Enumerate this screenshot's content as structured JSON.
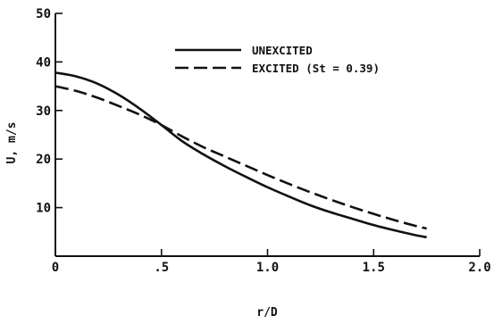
{
  "chart_data": {
    "type": "line",
    "xlabel": "r/D",
    "ylabel": "U, m/s",
    "xlim": [
      0,
      2.0
    ],
    "ylim": [
      0,
      50
    ],
    "x_ticks": [
      0,
      0.5,
      1.0,
      1.5,
      2.0
    ],
    "x_tick_labels": [
      "0",
      ".5",
      "1.0",
      "1.5",
      "2.0"
    ],
    "y_ticks": [
      10,
      20,
      30,
      40,
      50
    ],
    "y_tick_labels": [
      "10",
      "20",
      "30",
      "40",
      "50"
    ],
    "grid": false,
    "legend_position": "top-center",
    "series": [
      {
        "name": "UNEXCITED",
        "style": "solid",
        "color": "#111111",
        "x": [
          0,
          0.1,
          0.2,
          0.3,
          0.4,
          0.5,
          0.6,
          0.7,
          0.8,
          0.9,
          1.0,
          1.1,
          1.2,
          1.3,
          1.4,
          1.5,
          1.6,
          1.7,
          1.75
        ],
        "y": [
          37.8,
          37.0,
          35.5,
          33.2,
          30.3,
          27.0,
          23.6,
          20.9,
          18.5,
          16.3,
          14.2,
          12.3,
          10.5,
          9.0,
          7.7,
          6.4,
          5.3,
          4.3,
          3.9
        ]
      },
      {
        "name": "EXCITED (St = 0.39)",
        "style": "dashed",
        "color": "#111111",
        "x": [
          0,
          0.1,
          0.2,
          0.3,
          0.4,
          0.5,
          0.6,
          0.7,
          0.8,
          0.9,
          1.0,
          1.1,
          1.2,
          1.3,
          1.4,
          1.5,
          1.6,
          1.7,
          1.75
        ],
        "y": [
          35.0,
          34.0,
          32.6,
          30.9,
          29.1,
          27.0,
          24.6,
          22.4,
          20.5,
          18.6,
          16.7,
          14.9,
          13.2,
          11.6,
          10.1,
          8.7,
          7.4,
          6.2,
          5.7
        ]
      }
    ]
  }
}
